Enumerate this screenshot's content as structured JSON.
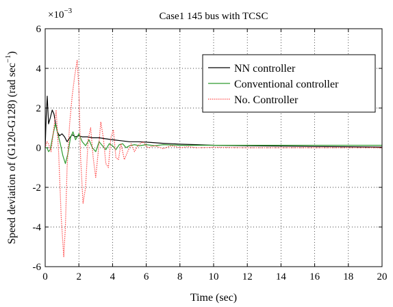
{
  "chart_data": {
    "type": "line",
    "title": "Case1 145 bus with TCSC",
    "xlabel": "Time (sec)",
    "ylabel": "Speed deviation of (G120-G128) (rad sec",
    "ylabel_sup": "−1",
    "ylabel_close": ")",
    "y_multiplier_base": "×10",
    "y_multiplier_exp": "−3",
    "xlim": [
      0,
      20
    ],
    "ylim": [
      -6,
      6
    ],
    "x_ticks": [
      0,
      2,
      4,
      6,
      8,
      10,
      12,
      14,
      16,
      18,
      20
    ],
    "y_ticks": [
      -6,
      -4,
      -2,
      0,
      2,
      4,
      6
    ],
    "grid": true,
    "legend_position": "top-right",
    "series": [
      {
        "name": "NN controller",
        "color": "#000000",
        "dash": "solid",
        "x": [
          0,
          0.06,
          0.12,
          0.2,
          0.3,
          0.42,
          0.52,
          0.62,
          0.72,
          0.85,
          1.0,
          1.15,
          1.3,
          1.45,
          1.6,
          1.8,
          2.0,
          2.2,
          2.5,
          2.8,
          3.2,
          3.6,
          4.0,
          4.5,
          5.0,
          5.5,
          6.0,
          7.0,
          8.0,
          9.0,
          10.0,
          12.0,
          14.0,
          16.0,
          18.0,
          20.0
        ],
        "values": [
          0,
          1.6,
          2.6,
          1.2,
          1.5,
          1.9,
          1.7,
          1.2,
          0.8,
          0.6,
          0.7,
          0.55,
          0.3,
          0.5,
          0.65,
          0.55,
          0.6,
          0.55,
          0.55,
          0.5,
          0.5,
          0.45,
          0.4,
          0.35,
          0.3,
          0.3,
          0.28,
          0.22,
          0.18,
          0.15,
          0.12,
          0.1,
          0.08,
          0.06,
          0.05,
          0.03
        ]
      },
      {
        "name": "Conventional controller",
        "color": "#2e9a2e",
        "dash": "solid",
        "x": [
          0,
          0.1,
          0.2,
          0.3,
          0.45,
          0.6,
          0.75,
          0.9,
          1.05,
          1.2,
          1.35,
          1.5,
          1.65,
          1.8,
          2.0,
          2.2,
          2.4,
          2.6,
          2.8,
          3.0,
          3.2,
          3.4,
          3.6,
          3.8,
          4.0,
          4.2,
          4.4,
          4.6,
          4.8,
          5.0,
          5.3,
          5.6,
          6.0,
          6.5,
          7.0,
          8.0,
          9.0,
          10.0,
          12.0,
          14.0,
          16.0,
          18.0,
          20.0
        ],
        "values": [
          0,
          0.0,
          -0.2,
          -0.1,
          0.6,
          1.2,
          0.7,
          0.2,
          -0.4,
          -0.8,
          -0.3,
          0.5,
          0.8,
          0.4,
          0.7,
          0.3,
          0.1,
          0.4,
          0.0,
          -0.2,
          0.3,
          0.1,
          -0.1,
          0.2,
          0.1,
          -0.1,
          0.15,
          0.2,
          0.0,
          0.1,
          0.15,
          0.1,
          0.15,
          0.1,
          0.15,
          0.12,
          0.12,
          0.12,
          0.12,
          0.12,
          0.12,
          0.12,
          0.12
        ]
      },
      {
        "name": "No. Controller",
        "color": "#ff4040",
        "dash": "dotted",
        "x": [
          0,
          0.1,
          0.2,
          0.35,
          0.5,
          0.65,
          0.8,
          0.95,
          1.1,
          1.2,
          1.3,
          1.45,
          1.6,
          1.75,
          1.9,
          2.0,
          2.1,
          2.25,
          2.4,
          2.55,
          2.7,
          2.85,
          3.0,
          3.15,
          3.3,
          3.45,
          3.6,
          3.75,
          3.9,
          4.05,
          4.2,
          4.35,
          4.5,
          4.7,
          4.9,
          5.1,
          5.3,
          5.5,
          5.8,
          6.1,
          6.5,
          7.0,
          7.5,
          8.0,
          8.5,
          9.0,
          10.0,
          12.0,
          14.0,
          16.0,
          18.0,
          20.0
        ],
        "values": [
          0,
          0.3,
          0.2,
          -0.2,
          0.9,
          1.9,
          -0.3,
          -3.5,
          -5.5,
          -4.0,
          -1.0,
          1.2,
          2.6,
          3.6,
          4.4,
          3.0,
          -0.5,
          -2.8,
          -2.0,
          0.4,
          1.0,
          -0.5,
          -1.5,
          -0.2,
          1.3,
          0.5,
          -0.8,
          -1.0,
          0.5,
          0.9,
          -0.5,
          -0.6,
          0.2,
          -0.6,
          -0.2,
          0.2,
          -0.2,
          0.1,
          0.3,
          0.0,
          0.1,
          -0.05,
          0.1,
          0.0,
          0.05,
          0.0,
          0.02,
          0.0,
          0.0,
          0.0,
          0.0,
          0.0
        ]
      }
    ]
  }
}
